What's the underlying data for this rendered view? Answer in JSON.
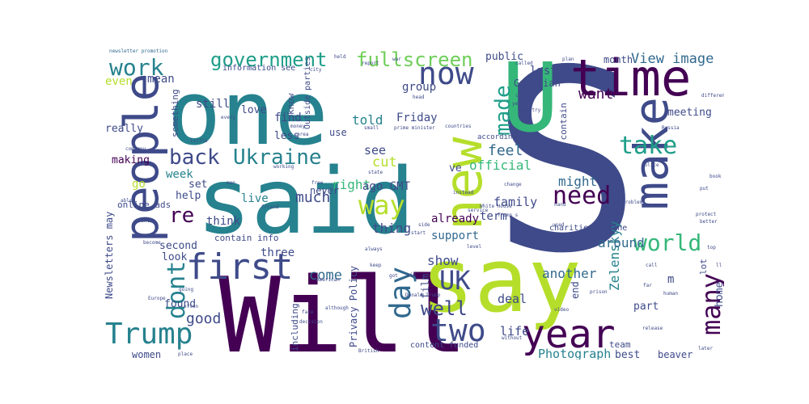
{
  "palette": {
    "deep_purple": "#440154",
    "indigo": "#3e4a89",
    "slate_blue": "#31688e",
    "teal": "#26828e",
    "green_teal": "#1f9e89",
    "green": "#35b779",
    "lime": "#6ece58",
    "yellow_green": "#b5de2b"
  },
  "words": {
    "s": "S",
    "said": "said",
    "will": "Will",
    "say": "say",
    "one": "one",
    "u": "U",
    "new": "new",
    "time": "time",
    "people": "people",
    "make": "make",
    "year": "year",
    "first": "first",
    "now": "now",
    "need": "need",
    "way": "way",
    "day": "day",
    "ukraine": "Ukraine",
    "back": "back",
    "work": "work",
    "trump": "Trump",
    "two": "two",
    "uk": "UK",
    "world": "world",
    "take": "take",
    "government": "government",
    "fullscreen": "fullscreen",
    "many": "many",
    "dont": "dont",
    "made": "made",
    "re": "re",
    "well": "well",
    "view_image": "View image",
    "want": "want",
    "told": "told",
    "much": "much",
    "zelenskyy": "Zelenskyy",
    "photograph": "Photograph",
    "good": "good",
    "come": "come",
    "show": "show",
    "right": "right",
    "another": "another",
    "around": "around",
    "feel": "feel",
    "official": "official",
    "might": "might",
    "cut": "cut",
    "ago_gmt": "ago GMT",
    "thing": "thing",
    "family": "family",
    "already": "already",
    "term": "term",
    "support": "support",
    "live": "live",
    "three": "three",
    "week": "week",
    "even": "even",
    "mean": "mean",
    "find": "find",
    "still": "still",
    "love": "love",
    "less": "less",
    "friday": "Friday",
    "group": "group",
    "last": "last",
    "public": "public",
    "guardian": "Guardian",
    "month": "month",
    "meeting": "meeting",
    "bbc": "BBC",
    "ve": "ve",
    "see": "see",
    "making": "making",
    "go": "go",
    "set": "set",
    "help": "help",
    "think": "think",
    "second": "second",
    "look": "look",
    "found": "found",
    "women": "women",
    "film": "film",
    "deal": "deal",
    "life": "life",
    "part": "part",
    "best": "best",
    "beaver": "beaver",
    "home": "home",
    "end": "end",
    "m": "m",
    "lot": "lot",
    "really": "really",
    "something": "something",
    "know": "know",
    "use": "use",
    "never": "never",
    "including": "including",
    "privacy_policy": "Privacy Policy",
    "newsletters_may": "Newsletters may",
    "may_contain": "may contain",
    "contain_info": "contain info",
    "content_funded": "content funded",
    "online_ads": "online ads",
    "charities_online": "charities online",
    "outside_parties": "Outside parties",
    "information_see": "information see",
    "according": "according",
    "team": "team",
    "newsletter_promotion": "newsletter promotion",
    "city": "city",
    "held": "held",
    "report": "report",
    "called": "called",
    "culture": "culture",
    "yet": "yet",
    "country": "country",
    "different": "different",
    "every": "every",
    "money": "money",
    "small": "small",
    "prime_minister": "prime minister",
    "countries": "countries",
    "russia": "Russia",
    "company": "company",
    "little": "little",
    "state": "state",
    "working": "working",
    "free": "free",
    "friend": "friend",
    "instead": "instead",
    "white_house": "White House",
    "trumps": "Trump s",
    "problem": "problem",
    "police": "police",
    "book": "book",
    "american": "American",
    "always": "always",
    "keep": "keep",
    "got": "got",
    "donald_trump": "Donald Trump",
    "although": "although",
    "decision": "decision",
    "british": "British",
    "without": "without",
    "prison": "prison",
    "video": "video",
    "release": "release",
    "later": "later",
    "europe": "Europe",
    "often": "often",
    "become": "become",
    "going": "going",
    "point": "point",
    "place": "place",
    "face": "face",
    "level": "level",
    "service": "service",
    "sign": "sign",
    "used": "used",
    "protect": "protect",
    "hand": "hand",
    "change": "change",
    "plan": "plan",
    "war": "war",
    "head": "head",
    "area": "area",
    "top": "top",
    "call": "call",
    "able": "able",
    "better": "better",
    "ll": "ll",
    "told2": "far",
    "human": "human",
    "men": "men",
    "put": "put",
    "side": "side",
    "start": "start",
    "aid": "aid"
  }
}
